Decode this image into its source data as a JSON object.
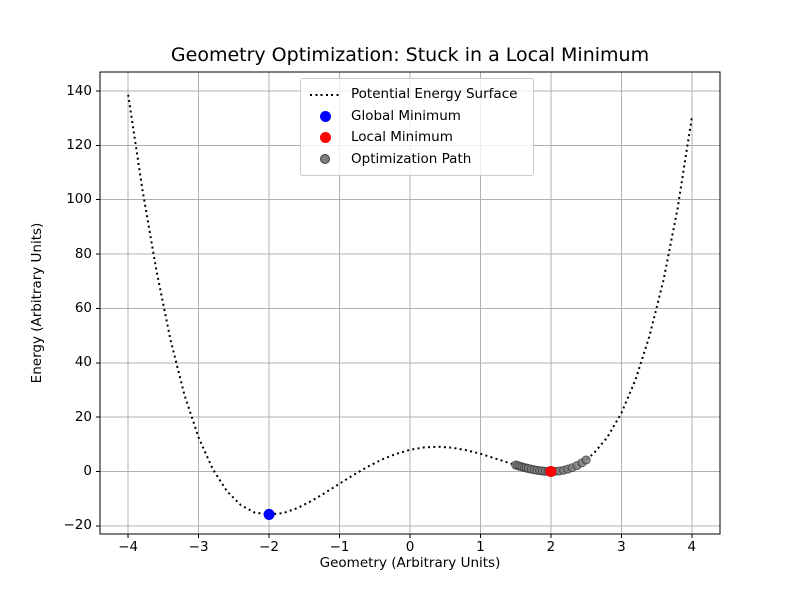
{
  "title": "Geometry Optimization: Stuck in a Local Minimum",
  "axes": {
    "xlabel": "Geometry (Arbitrary Units)",
    "ylabel": "Energy (Arbitrary Units)",
    "x_ticks": [
      -4,
      -3,
      -2,
      -1,
      0,
      1,
      2,
      3,
      4
    ],
    "y_ticks": [
      -20,
      0,
      20,
      40,
      60,
      80,
      100,
      120,
      140
    ],
    "xlim": [
      -4.4,
      4.4
    ],
    "ylim": [
      -23,
      147
    ],
    "grid": true,
    "grid_color": "#b0b0b0",
    "spine_color": "#000000",
    "background": "#ffffff"
  },
  "legend": {
    "position": "upper center",
    "border_color": "#cccccc",
    "items": [
      {
        "label": "Potential Energy Surface",
        "marker": "dotted-line",
        "color": "#000000"
      },
      {
        "label": "Global Minimum",
        "marker": "dot",
        "color": "#0000ff"
      },
      {
        "label": "Local Minimum",
        "marker": "dot",
        "color": "#ff0000"
      },
      {
        "label": "Optimization Path",
        "marker": "dot-small",
        "color": "#7f7f7f",
        "edge_color": "#3c3c3c"
      }
    ]
  },
  "chart_data": {
    "type": "line",
    "title": "Geometry Optimization: Stuck in a Local Minimum",
    "xlabel": "Geometry (Arbitrary Units)",
    "ylabel": "Energy (Arbitrary Units)",
    "xlim": [
      -4.4,
      4.4
    ],
    "ylim": [
      -23,
      147
    ],
    "grid": true,
    "legend_position": "upper center",
    "series": [
      {
        "name": "Potential Energy Surface",
        "type": "line",
        "style": "dotted",
        "color": "#000000",
        "linewidth": 2,
        "points": [
          [
            -4,
            138.6
          ],
          [
            -3.8,
            104
          ],
          [
            -3.6,
            74.01
          ],
          [
            -3.4,
            48.41
          ],
          [
            -3.2,
            28.12
          ],
          [
            -3,
            12.5
          ],
          [
            -2.8,
            0.92
          ],
          [
            -2.6,
            -7.19
          ],
          [
            -2.4,
            -12.39
          ],
          [
            -2.2,
            -15.17
          ],
          [
            -2,
            -15.8
          ],
          [
            -1.8,
            -15.31
          ],
          [
            -1.6,
            -13.48
          ],
          [
            -1.4,
            -10.87
          ],
          [
            -1.2,
            -7.78
          ],
          [
            -1,
            -4.5
          ],
          [
            -0.8,
            -1.25
          ],
          [
            -0.6,
            1.76
          ],
          [
            -0.4,
            4.38
          ],
          [
            -0.2,
            6.49
          ],
          [
            0,
            8
          ],
          [
            0.2,
            8.88
          ],
          [
            0.4,
            9.11
          ],
          [
            0.6,
            8.74
          ],
          [
            0.8,
            7.83
          ],
          [
            1,
            6.5
          ],
          [
            1.2,
            4.89
          ],
          [
            1.4,
            3.19
          ],
          [
            1.6,
            1.63
          ],
          [
            1.8,
            0.46
          ],
          [
            2,
            0
          ],
          [
            2.2,
            0.58
          ],
          [
            2.4,
            2.59
          ],
          [
            2.6,
            6.43
          ],
          [
            2.8,
            12.57
          ],
          [
            3,
            21.5
          ],
          [
            3.2,
            33.75
          ],
          [
            3.4,
            49.9
          ],
          [
            3.6,
            70.55
          ],
          [
            3.8,
            97
          ],
          [
            4,
            130.2
          ]
        ]
      },
      {
        "name": "Global Minimum",
        "type": "scatter",
        "color": "#0000ff",
        "marker_radius": 5.5,
        "points": [
          [
            -2,
            -15.8
          ]
        ]
      },
      {
        "name": "Local Minimum",
        "type": "scatter",
        "color": "#ff0000",
        "marker_radius": 5.5,
        "points": [
          [
            2,
            0
          ]
        ]
      },
      {
        "name": "Optimization Path",
        "type": "scatter",
        "color": "#7f7f7f",
        "edge_color": "#3c3c3c",
        "opacity": 0.85,
        "marker_radius": 4,
        "points": [
          [
            1.5,
            2.38
          ],
          [
            1.53,
            2.14
          ],
          [
            1.56,
            1.92
          ],
          [
            1.59,
            1.7
          ],
          [
            1.62,
            1.49
          ],
          [
            1.65,
            1.29
          ],
          [
            1.68,
            1.1
          ],
          [
            1.72,
            0.86
          ],
          [
            1.76,
            0.65
          ],
          [
            1.8,
            0.46
          ],
          [
            1.84,
            0.3
          ],
          [
            1.88,
            0.17
          ],
          [
            1.92,
            0.08
          ],
          [
            1.96,
            0.02
          ],
          [
            2,
            0
          ],
          [
            2.06,
            0.05
          ],
          [
            2.12,
            0.2
          ],
          [
            2.18,
            0.47
          ],
          [
            2.24,
            0.86
          ],
          [
            2.3,
            1.38
          ],
          [
            2.37,
            2.18
          ],
          [
            2.44,
            3.19
          ],
          [
            2.5,
            4.25
          ]
        ]
      }
    ]
  }
}
